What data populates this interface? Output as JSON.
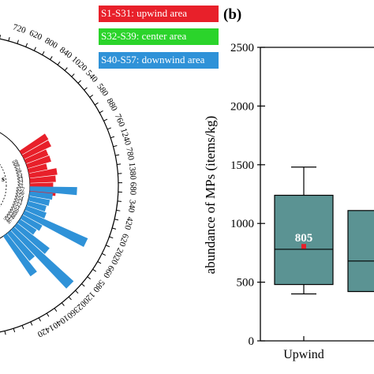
{
  "legend": [
    {
      "label": "S1-S31: upwind area",
      "color": "#e8202a"
    },
    {
      "label": "S32-S39: center area",
      "color": "#2bd42b"
    },
    {
      "label": "S40-S57: downwind area",
      "color": "#2f92d8"
    }
  ],
  "colors": {
    "upwind": "#e8202a",
    "downwind": "#2f92d8",
    "box_fill": "#5b9393",
    "mean_marker": "#e8202a"
  },
  "chart_data": [
    {
      "type": "bar",
      "subtype": "radial",
      "center_label_fragment": "s",
      "outer_ring_values": [
        "1420",
        "1040",
        "2360",
        "1200",
        "580",
        "660",
        "2020",
        "620",
        "420",
        "340",
        "680",
        "1380",
        "780",
        "1240",
        "760",
        "880",
        "580",
        "540",
        "1020",
        "840",
        "800",
        "620",
        "720"
      ],
      "inner_sample_labels": [
        "S9",
        "S8",
        "S7",
        "S6",
        "S5",
        "S4",
        "S3",
        "S2",
        "S1",
        "S57",
        "S56",
        "S55",
        "S54",
        "S53",
        "S52",
        "S51",
        "S50",
        "S49",
        "S48",
        "S47",
        "S46"
      ],
      "series": [
        {
          "name": "S1-S31: upwind area",
          "values": [
            900,
            880,
            700,
            720,
            560,
            820,
            760,
            680,
            760
          ]
        },
        {
          "name": "S40-S57: downwind area",
          "values": [
            1380,
            680,
            620,
            560,
            620,
            2020,
            660,
            580,
            1200,
            2360,
            1040,
            1420
          ]
        }
      ]
    },
    {
      "type": "box",
      "panel_label": "(b)",
      "ylabel": "abundance of MPs (items/kg)",
      "ylim": [
        0,
        2500
      ],
      "yticks": [
        "0",
        "500",
        "1000",
        "1500",
        "2000",
        "2500"
      ],
      "categories": [
        "Upwind",
        ""
      ],
      "boxes": [
        {
          "name": "Upwind",
          "whisker_low": 400,
          "q1": 480,
          "median": 780,
          "q3": 1240,
          "whisker_high": 1480,
          "mean": 805,
          "mean_label": "805"
        },
        {
          "name": "",
          "whisker_low": null,
          "q1": 420,
          "median": 680,
          "q3": 1110,
          "whisker_high": null,
          "mean": null,
          "mean_label": ""
        }
      ]
    }
  ]
}
